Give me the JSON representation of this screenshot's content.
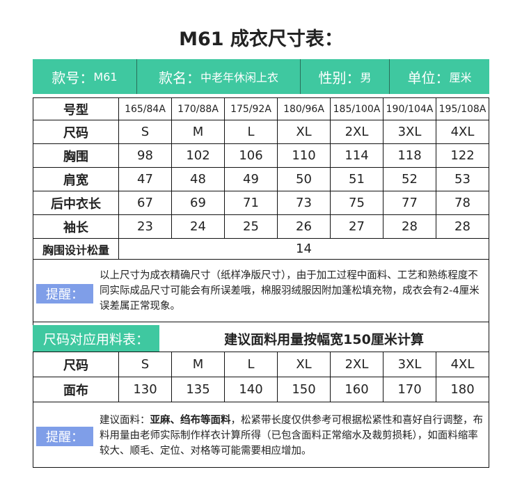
{
  "title": "M61 成衣尺寸表：",
  "header": [
    {
      "label": "款号：",
      "value": "M61"
    },
    {
      "label": "款名：",
      "value": "中老年休闲上衣"
    },
    {
      "label": "性别：",
      "value": "男"
    },
    {
      "label": "单位：",
      "value": "厘米"
    }
  ],
  "size_table": {
    "rows": [
      [
        "号型",
        "165/84A",
        "170/88A",
        "175/92A",
        "180/96A",
        "185/100A",
        "190/104A",
        "195/108A"
      ],
      [
        "尺码",
        "S",
        "M",
        "L",
        "XL",
        "2XL",
        "3XL",
        "4XL"
      ],
      [
        "胸围",
        98,
        102,
        106,
        110,
        114,
        118,
        122
      ],
      [
        "肩宽",
        47,
        48,
        49,
        50,
        51,
        52,
        53
      ],
      [
        "后中衣长",
        67,
        69,
        71,
        73,
        75,
        77,
        78
      ],
      [
        "袖长",
        23,
        24,
        25,
        26,
        27,
        28,
        28
      ]
    ],
    "ease": {
      "label": "胸围设计松量",
      "value": 14
    }
  },
  "note1": {
    "tag": "提醒：",
    "text": "以上尺寸为成衣精确尺寸（纸样净版尺寸），由于加工过程中面料、工艺和熟练程度不同实际成品尺寸可能会有所误差哦，棉服羽绒服因附加蓬松填充物，成衣会有2-4厘米误差属正常现象。"
  },
  "fabric": {
    "label": "尺码对应用料表：",
    "subtitle": "建议面料用量按幅宽150厘米计算",
    "rows": [
      [
        "尺码",
        "S",
        "M",
        "L",
        "XL",
        "2XL",
        "3XL",
        "4XL"
      ],
      [
        "面布",
        130,
        135,
        140,
        150,
        160,
        170,
        180
      ]
    ]
  },
  "note2": {
    "tag": "提醒：",
    "parts": [
      "建议面料：",
      "亚麻、绉布等面料",
      "，松紧带长度仅供参考可根据松紧性和喜好自行调整，布料用量由老师实际制作样衣计算所得（已包含面料正常缩水及裁剪损耗），如面料缩率较大、顺毛、定位、对格等可能需要相应增加。"
    ]
  }
}
